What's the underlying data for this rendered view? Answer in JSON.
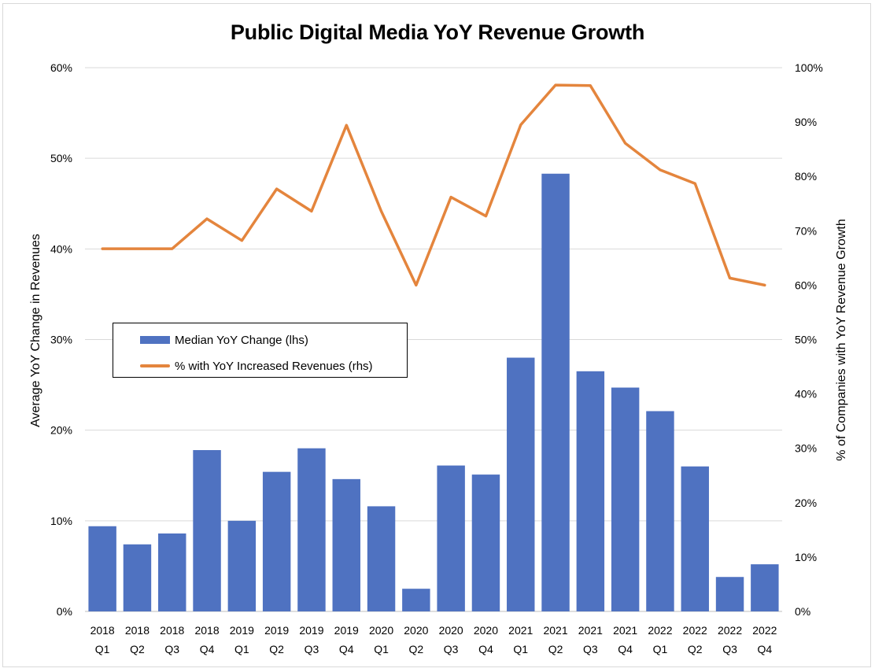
{
  "chart_data": {
    "type": "bar+line",
    "title": "Public Digital Media YoY Revenue Growth",
    "categories": [
      [
        "2018",
        "Q1"
      ],
      [
        "2018",
        "Q2"
      ],
      [
        "2018",
        "Q3"
      ],
      [
        "2018",
        "Q4"
      ],
      [
        "2019",
        "Q1"
      ],
      [
        "2019",
        "Q2"
      ],
      [
        "2019",
        "Q3"
      ],
      [
        "2019",
        "Q4"
      ],
      [
        "2020",
        "Q1"
      ],
      [
        "2020",
        "Q2"
      ],
      [
        "2020",
        "Q3"
      ],
      [
        "2020",
        "Q4"
      ],
      [
        "2021",
        "Q1"
      ],
      [
        "2021",
        "Q2"
      ],
      [
        "2021",
        "Q3"
      ],
      [
        "2021",
        "Q4"
      ],
      [
        "2022",
        "Q1"
      ],
      [
        "2022",
        "Q2"
      ],
      [
        "2022",
        "Q3"
      ],
      [
        "2022",
        "Q4"
      ]
    ],
    "ylabel_left": "Average YoY Change in Revenues",
    "ylabel_right": "% of Companies with YoY Revenue Growth",
    "yticks_left": [
      "0%",
      "10%",
      "20%",
      "30%",
      "40%",
      "50%",
      "60%"
    ],
    "yticks_right": [
      "0%",
      "10%",
      "20%",
      "30%",
      "40%",
      "50%",
      "60%",
      "70%",
      "80%",
      "90%",
      "100%"
    ],
    "ylim_left": [
      0,
      60
    ],
    "ylim_right": [
      0,
      100
    ],
    "grid": true,
    "legend_position": "center-left",
    "series": [
      {
        "name": "Median YoY Change (lhs)",
        "type": "bar",
        "axis": "left",
        "color": "#4f72c1",
        "values": [
          9.4,
          7.4,
          8.6,
          17.8,
          10.0,
          15.4,
          18.0,
          14.6,
          11.6,
          2.5,
          16.1,
          15.1,
          28.0,
          48.3,
          26.5,
          24.7,
          22.1,
          16.0,
          3.8,
          5.2
        ]
      },
      {
        "name": "% with YoY Increased Revenues (rhs)",
        "type": "line",
        "axis": "right",
        "color": "#e4853d",
        "values": [
          66.7,
          66.7,
          66.7,
          72.2,
          68.2,
          77.7,
          73.6,
          89.4,
          73.6,
          60.0,
          76.2,
          72.7,
          89.5,
          96.8,
          96.7,
          86.1,
          81.2,
          78.7,
          61.3,
          60.0
        ]
      }
    ]
  }
}
